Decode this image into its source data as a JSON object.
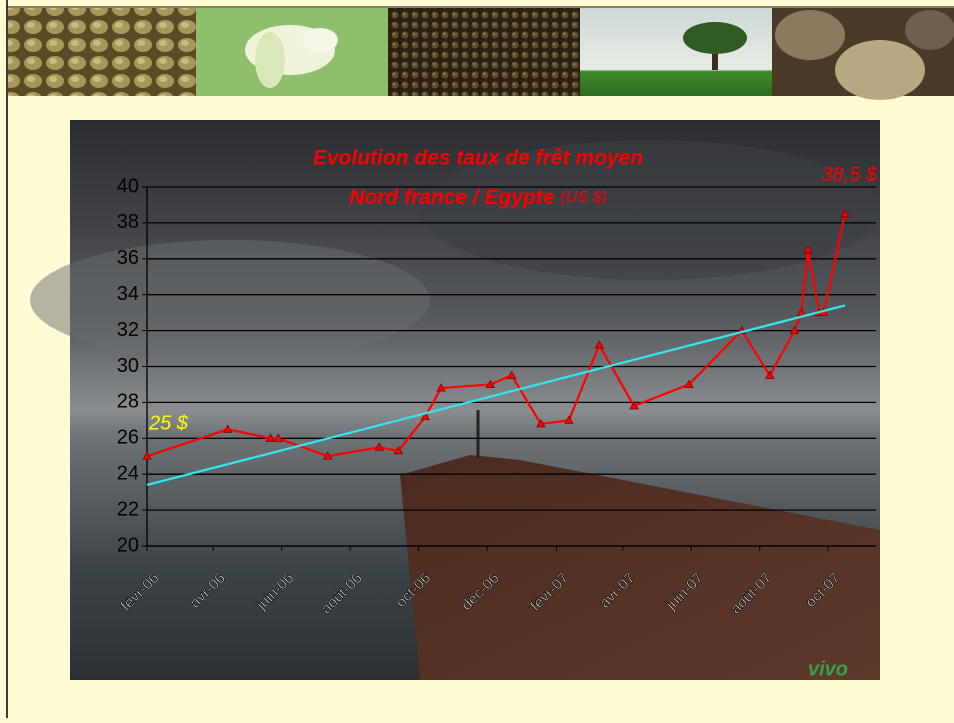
{
  "chart_data": {
    "type": "line",
    "title": "Evolution des taux de frêt moyen",
    "subtitle": "Nord france / Egypte",
    "subtitle_unit": "(US $)",
    "annotations": [
      "25 $",
      "38,5 $"
    ],
    "logo": "vivo",
    "xlim": [
      38749,
      39371
    ],
    "xticks": [
      {
        "value": 38749,
        "label": "févr-06"
      },
      {
        "value": 38808,
        "label": "avr-06"
      },
      {
        "value": 38869,
        "label": "juin-06"
      },
      {
        "value": 38930,
        "label": "août-06"
      },
      {
        "value": 38991,
        "label": "oct-06"
      },
      {
        "value": 39052,
        "label": "déc-06"
      },
      {
        "value": 39114,
        "label": "févr-07"
      },
      {
        "value": 39173,
        "label": "avr-07"
      },
      {
        "value": 39234,
        "label": "juin-07"
      },
      {
        "value": 39295,
        "label": "août-07"
      },
      {
        "value": 39356,
        "label": "oct-07"
      }
    ],
    "ylim": [
      20,
      40
    ],
    "yticks": [
      20,
      22,
      24,
      26,
      28,
      30,
      32,
      34,
      36,
      38,
      40
    ],
    "grid": true,
    "series": [
      {
        "color": "#ff0000",
        "marker": "triangle",
        "x": [
          38749,
          38821,
          38859,
          38866,
          38910,
          38956,
          38973,
          38997,
          39011,
          39055,
          39074,
          39100,
          39125,
          39152,
          39183,
          39232,
          39279,
          39304,
          39326,
          39332,
          39338,
          39348,
          39352,
          39371
        ],
        "values": [
          25,
          26.5,
          26,
          26,
          25,
          25.5,
          25.3,
          27.2,
          28.8,
          29,
          29.5,
          26.8,
          27,
          31.2,
          27.8,
          29,
          32,
          29.5,
          32,
          33,
          36.5,
          33,
          33,
          38.5
        ]
      },
      {
        "color": "#33e6f0",
        "marker": "none",
        "x": [
          38749,
          39371
        ],
        "values": [
          23.4,
          33.4
        ]
      }
    ]
  }
}
